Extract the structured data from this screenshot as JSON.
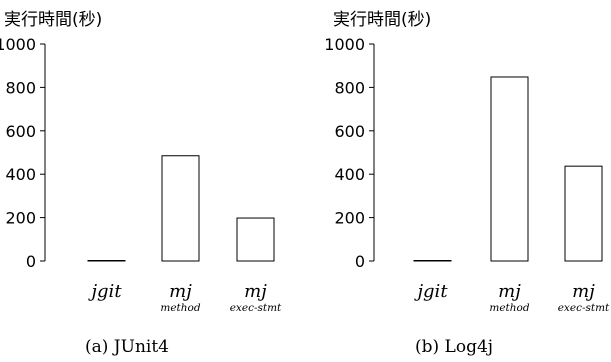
{
  "chart_data": [
    {
      "type": "bar",
      "ylabel": "実行時間(秒)",
      "ylim": [
        0,
        1000
      ],
      "yticks": [
        0,
        200,
        400,
        600,
        800,
        1000
      ],
      "categories": [
        {
          "label": "jgit",
          "sub": ""
        },
        {
          "label": "mj",
          "sub": "method"
        },
        {
          "label": "mj",
          "sub": "exec-stmt"
        }
      ],
      "values": [
        2,
        485,
        198
      ],
      "caption": "(a) JUnit4"
    },
    {
      "type": "bar",
      "ylabel": "実行時間(秒)",
      "ylim": [
        0,
        1000
      ],
      "yticks": [
        0,
        200,
        400,
        600,
        800,
        1000
      ],
      "categories": [
        {
          "label": "jgit",
          "sub": ""
        },
        {
          "label": "mj",
          "sub": "method"
        },
        {
          "label": "mj",
          "sub": "exec-stmt"
        }
      ],
      "values": [
        2,
        848,
        437
      ],
      "caption": "(b) Log4j"
    }
  ]
}
